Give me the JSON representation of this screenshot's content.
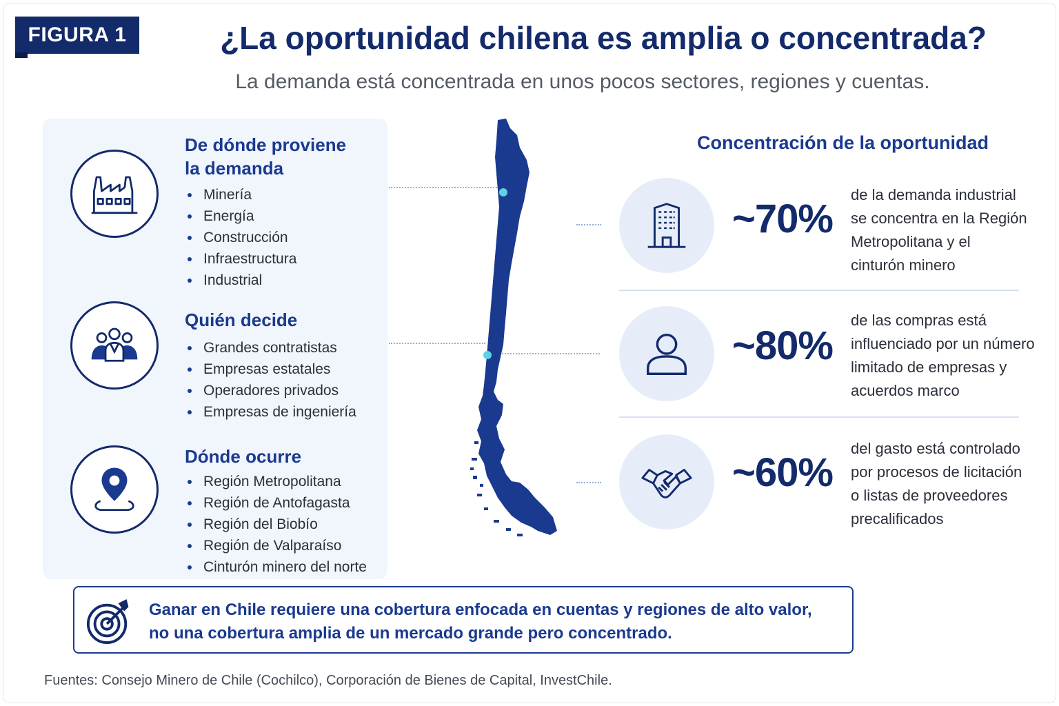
{
  "figure_tag": "FIGURA 1",
  "title": "¿La oportunidad chilena es amplia o concentrada?",
  "subtitle": "La demanda está concentrada en unos pocos sectores, regiones y cuentas.",
  "left_sections": [
    {
      "heading_line1": "De dónde proviene",
      "heading_line2": "la demanda",
      "icon": "factory-icon",
      "items": [
        "Minería",
        "Energía",
        "Construcción",
        "Infraestructura",
        "Industrial"
      ]
    },
    {
      "heading_line1": "Quién decide",
      "icon": "people-group-icon",
      "items": [
        "Grandes contratistas",
        "Empresas estatales",
        "Operadores privados",
        "Empresas de ingeniería"
      ]
    },
    {
      "heading_line1": "Dónde ocurre",
      "icon": "location-pin-icon",
      "items": [
        "Región Metropolitana",
        "Región de Antofagasta",
        "Región del Biobío",
        "Región de Valparaíso",
        "Cinturón minero del norte"
      ]
    }
  ],
  "right_heading": "Concentración de la oportunidad",
  "stats": [
    {
      "value": "~70%",
      "icon": "building-icon",
      "lines": [
        "de la demanda industrial",
        "se concentra en la Región",
        "Metropolitana y el",
        "cinturón minero"
      ]
    },
    {
      "value": "~80%",
      "icon": "person-icon",
      "lines": [
        "de las compras está",
        "influenciado por un número",
        "limitado de empresas y",
        "acuerdos marco"
      ]
    },
    {
      "value": "~60%",
      "icon": "handshake-icon",
      "lines": [
        "del gasto está controlado",
        "por procesos de licitación",
        "o listas de proveedores",
        "precalificados"
      ]
    }
  ],
  "banner": {
    "icon": "target-icon",
    "line1": "Ganar en Chile requiere una cobertura  enfocada en cuentas y regiones de alto valor,",
    "line2": "no una cobertura amplia de un mercado grande pero concentrado."
  },
  "source": "Fuentes: Consejo Minero de Chile (Cochilco), Corporación de Bienes de Capital, InvestChile.",
  "colors": {
    "navy": "#132a6b",
    "blue": "#1a3a8f",
    "panel": "#f1f5fc",
    "circle_bg": "#e6edf8",
    "map_dot": "#5fd0e6"
  }
}
